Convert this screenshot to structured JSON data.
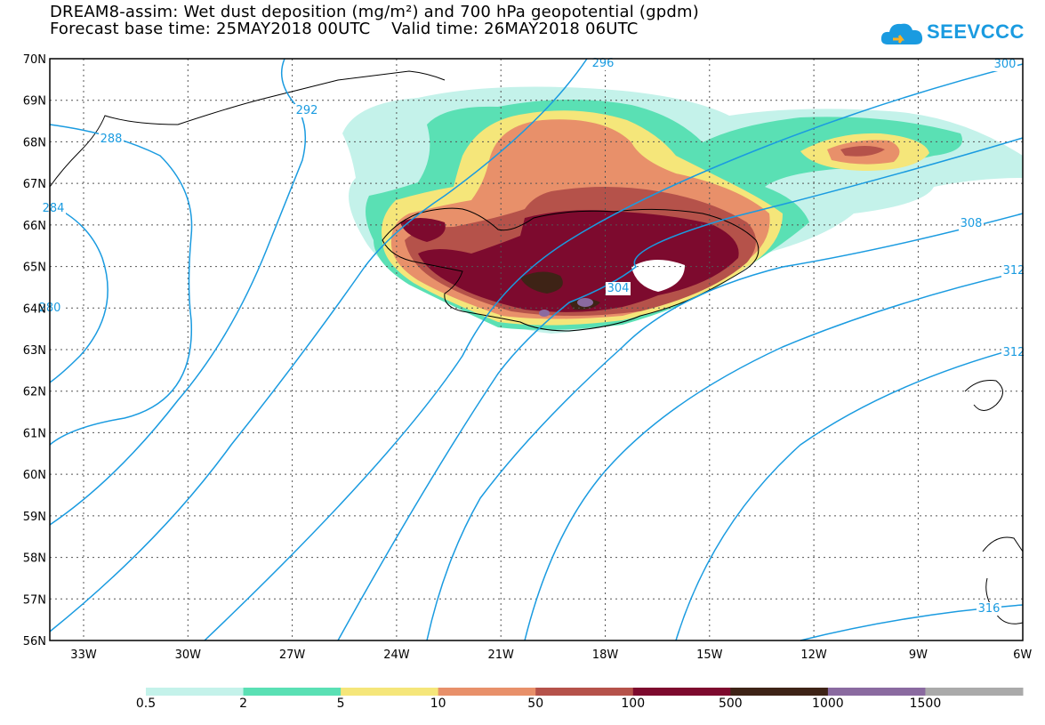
{
  "title_line1": "DREAM8-assim: Wet dust deposition (mg/m²) and 700 hPa geopotential (gpdm)",
  "title_line2": "Forecast base time: 25MAY2018 00UTC    Valid time: 26MAY2018 06UTC",
  "logo_text": "SEEVCCC",
  "lat_labels": [
    "70N",
    "69N",
    "68N",
    "67N",
    "66N",
    "65N",
    "64N",
    "63N",
    "62N",
    "61N",
    "60N",
    "59N",
    "58N",
    "57N",
    "56N"
  ],
  "lon_labels": [
    "33W",
    "30W",
    "27W",
    "24W",
    "21W",
    "18W",
    "15W",
    "12W",
    "9W",
    "6W"
  ],
  "contour_labels": [
    "288",
    "292",
    "284",
    "280",
    "296",
    "300",
    "304",
    "308",
    "312",
    "312",
    "316"
  ],
  "colorbar": {
    "ticks": [
      "0.5",
      "2",
      "5",
      "10",
      "50",
      "100",
      "500",
      "1000",
      "1500"
    ],
    "colors": [
      "#c4f2ea",
      "#5ae0b4",
      "#f5e67a",
      "#e8906a",
      "#b5524a",
      "#7d0a2e",
      "#3e2316",
      "#8a6aa0",
      "#aaaaaa"
    ]
  },
  "colors": {
    "contour": "#1a9be0"
  }
}
